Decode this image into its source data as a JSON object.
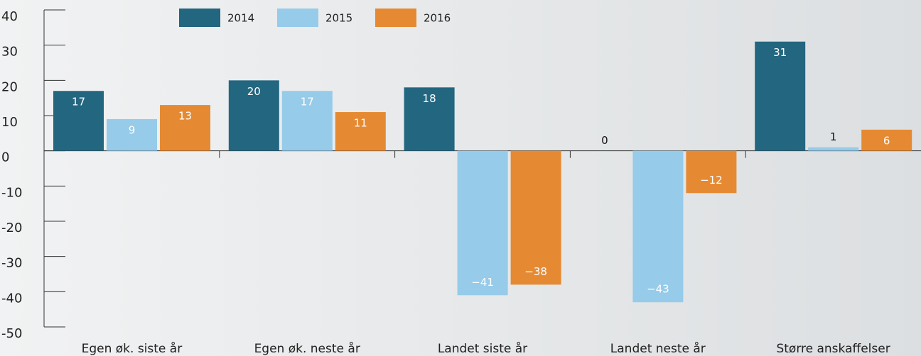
{
  "chart_data": {
    "type": "bar",
    "categories": [
      "Egen øk. siste år",
      "Egen øk. neste år",
      "Landet siste år",
      "Landet neste år",
      "Større anskaffelser"
    ],
    "series": [
      {
        "name": "2014",
        "color": "#236680",
        "values": [
          17,
          20,
          18,
          0,
          31
        ],
        "value_labels": [
          "17",
          "20",
          "18",
          "0",
          "31"
        ]
      },
      {
        "name": "2015",
        "color": "#96cbe9",
        "values": [
          9,
          17,
          -41,
          -43,
          1
        ],
        "value_labels": [
          "9",
          "17",
          "−41",
          "−43",
          "1"
        ]
      },
      {
        "name": "2016",
        "color": "#e58a33",
        "values": [
          13,
          11,
          -38,
          -12,
          6
        ],
        "value_labels": [
          "13",
          "11",
          "−38",
          "−12",
          "6"
        ]
      }
    ],
    "ylim": [
      -50,
      40
    ],
    "yticks": [
      -50,
      -40,
      -30,
      -20,
      -10,
      0,
      10,
      20,
      30,
      40
    ],
    "legend": "top"
  }
}
